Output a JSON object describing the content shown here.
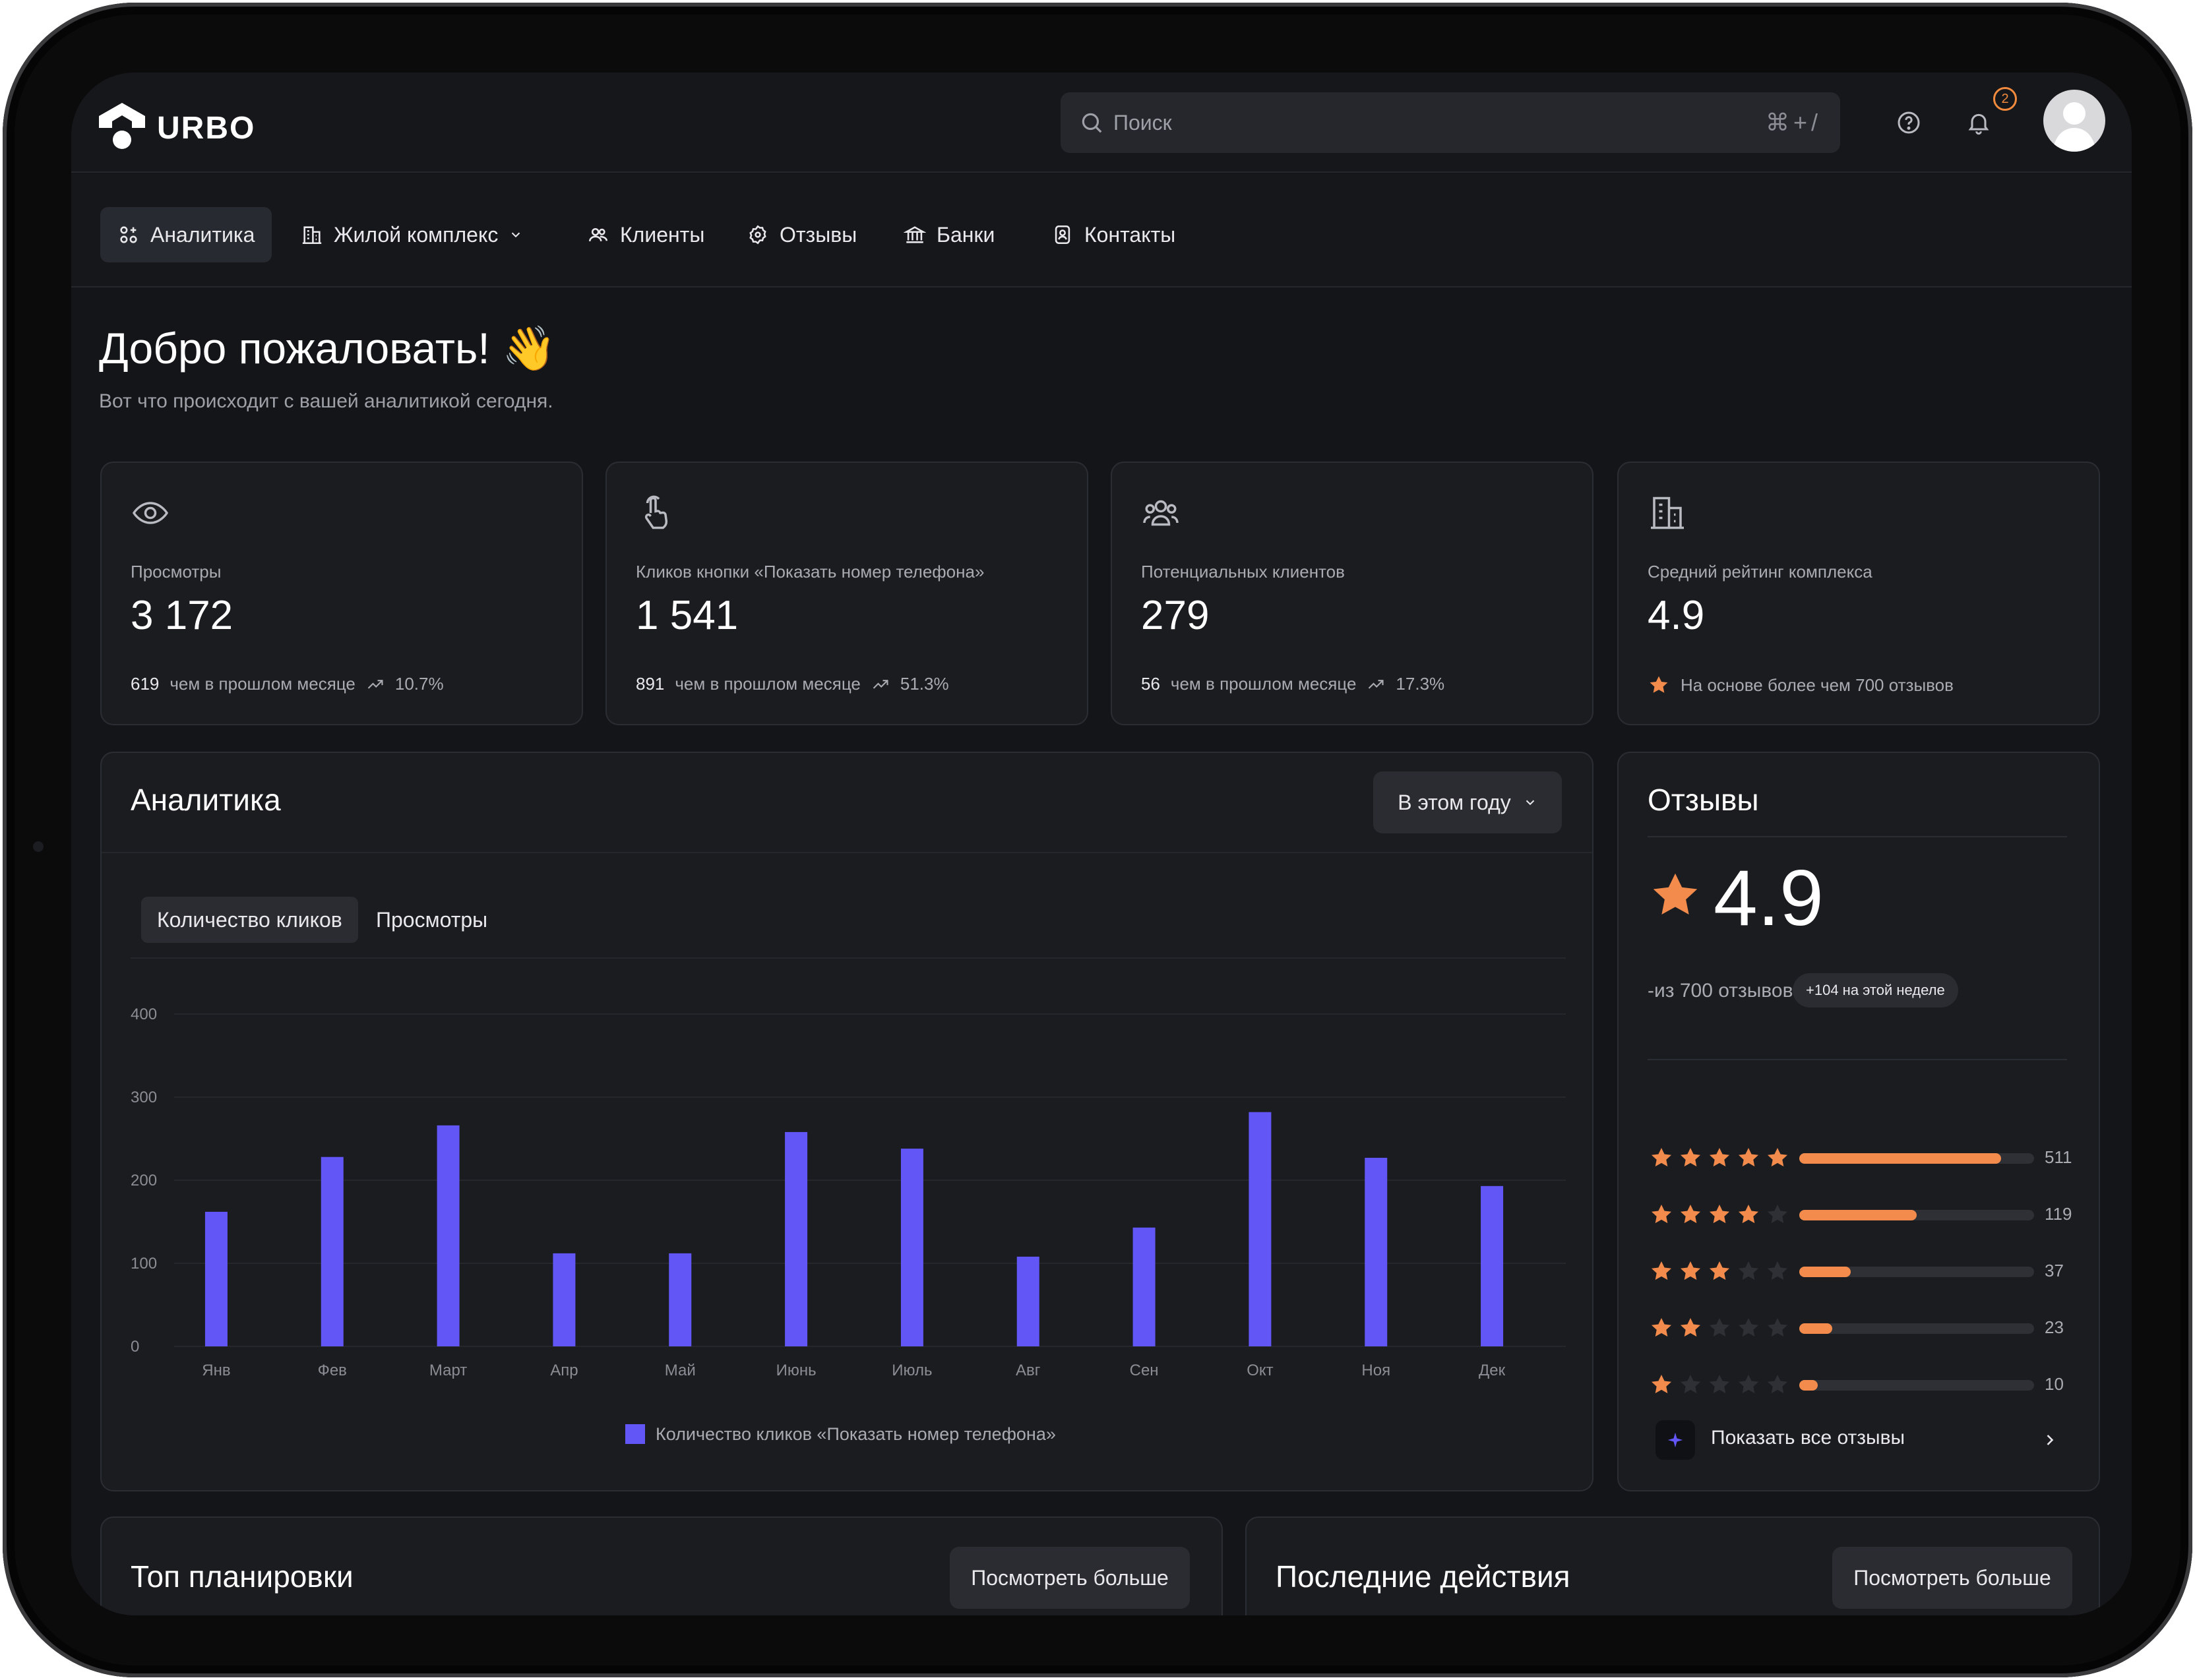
{
  "app": {
    "logo_text": "URBO"
  },
  "search": {
    "placeholder": "Поиск",
    "shortcut": "⌘+/"
  },
  "header": {
    "notification_count": "2"
  },
  "nav": [
    {
      "label": "Аналитика",
      "icon": "grid-plus-icon",
      "active": true
    },
    {
      "label": "Жилой комплекс",
      "icon": "building-icon",
      "has_dropdown": true
    },
    {
      "label": "Клиенты",
      "icon": "users-icon"
    },
    {
      "label": "Отзывы",
      "icon": "review-badge-icon"
    },
    {
      "label": "Банки",
      "icon": "bank-icon"
    },
    {
      "label": "Контакты",
      "icon": "contact-book-icon"
    }
  ],
  "welcome": {
    "title": "Добро пожаловать! 👋",
    "subtitle": "Вот что происходит с вашей аналитикой сегодня."
  },
  "stats": [
    {
      "icon": "eye-icon",
      "label": "Просмотры",
      "value": "3 172",
      "delta": "619",
      "delta_text": "чем в прошлом месяце",
      "percent": "10.7%"
    },
    {
      "icon": "pointer-hand-icon",
      "label": "Кликов кнопки «Показать номер телефона»",
      "value": "1 541",
      "delta": "891",
      "delta_text": "чем в прошлом месяце",
      "percent": "51.3%"
    },
    {
      "icon": "users-group-icon",
      "label": "Потенциальных клиентов",
      "value": "279",
      "delta": "56",
      "delta_text": "чем в прошлом месяце",
      "percent": "17.3%"
    },
    {
      "icon": "building-icon",
      "label": "Средний рейтинг комплекса",
      "value": "4.9",
      "note": "На основе более чем 700 отзывов"
    }
  ],
  "analytics": {
    "title": "Аналитика",
    "period": "В этом году",
    "tabs": [
      "Количество кликов",
      "Просмотры"
    ],
    "legend": "Количество кликов «Показать номер телефона»"
  },
  "chart_data": {
    "type": "bar",
    "categories": [
      "Янв",
      "Фев",
      "Март",
      "Апр",
      "Май",
      "Июнь",
      "Июль",
      "Авг",
      "Сен",
      "Окт",
      "Ноя",
      "Дек"
    ],
    "series": [
      {
        "name": "Количество кликов «Показать номер телефона»",
        "values": [
          162,
          228,
          266,
          112,
          112,
          258,
          238,
          108,
          143,
          282,
          227,
          193
        ],
        "color": "#6257f6"
      }
    ],
    "yticks": [
      "0",
      "100",
      "200",
      "300",
      "400"
    ],
    "ylim": [
      0,
      400
    ],
    "grid": true,
    "legend_position": "bottom"
  },
  "reviews": {
    "title": "Отзывы",
    "score": "4.9",
    "count_text": "-из 700 отзывов",
    "week_badge": "+104 на этой неделе",
    "rows": [
      {
        "stars": 5,
        "count": "511",
        "fraction": 0.86
      },
      {
        "stars": 4,
        "count": "119",
        "fraction": 0.5
      },
      {
        "stars": 3,
        "count": "37",
        "fraction": 0.22
      },
      {
        "stars": 2,
        "count": "23",
        "fraction": 0.14
      },
      {
        "stars": 1,
        "count": "10",
        "fraction": 0.08
      }
    ],
    "show_all": "Показать все отзывы"
  },
  "bottom": {
    "plans_title": "Топ планировки",
    "actions_title": "Последние действия",
    "more_label": "Посмотреть больше"
  },
  "colors": {
    "accent": "#6257f6",
    "star": "#f28b4b",
    "background": "#141518",
    "card": "#1a1c20"
  }
}
